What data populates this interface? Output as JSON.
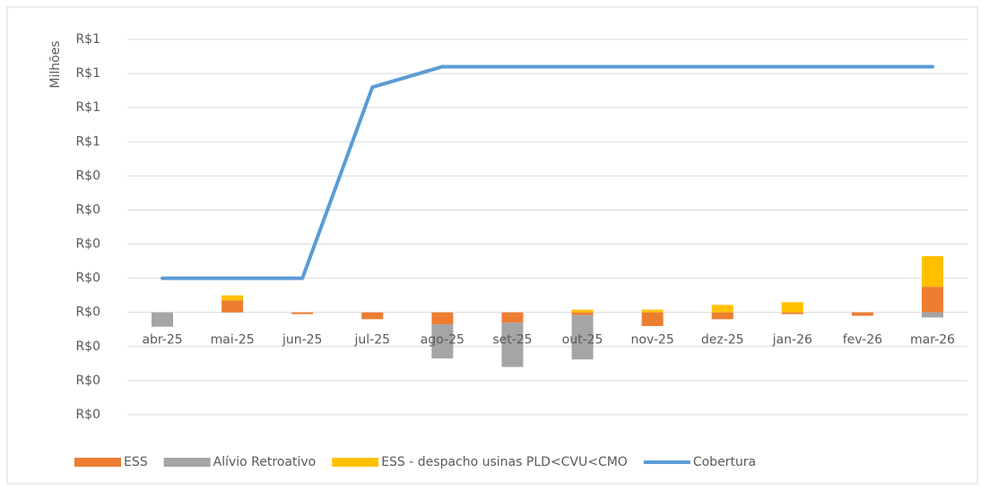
{
  "chart_data": {
    "type": "bar_line",
    "y_label": "Milhões",
    "categories": [
      "abr-25",
      "mai-25",
      "jun-25",
      "jul-25",
      "ago-25",
      "set-25",
      "out-25",
      "nov-25",
      "dez-25",
      "jan-26",
      "fev-26",
      "mar-26"
    ],
    "series": [
      {
        "name": "ESS",
        "type": "bar",
        "color": "#ed7d31",
        "values": [
          0,
          0.035,
          -0.005,
          -0.02,
          -0.035,
          -0.03,
          -0.008,
          -0.04,
          -0.02,
          -0.005,
          -0.01,
          0.075
        ]
      },
      {
        "name": "Alívio Retroativo",
        "type": "bar",
        "color": "#a5a5a5",
        "values": [
          -0.042,
          0,
          0,
          0,
          -0.1,
          -0.13,
          -0.13,
          0,
          0,
          0,
          0,
          -0.015
        ]
      },
      {
        "name": "ESS - despacho usinas PLD<CVU<CMO",
        "type": "bar",
        "color": "#ffc000",
        "values": [
          0,
          0.015,
          0,
          0,
          0,
          0,
          0.008,
          0.008,
          0.022,
          0.03,
          0,
          0.09
        ]
      },
      {
        "name": "Cobertura",
        "type": "line",
        "color": "#5b9bd5",
        "values": [
          0.1,
          0.1,
          0.1,
          0.66,
          0.72,
          0.72,
          0.72,
          0.72,
          0.72,
          0.72,
          0.72,
          0.72
        ]
      }
    ],
    "ylim": [
      -0.3,
      0.8
    ],
    "yticks": [
      {
        "value": -0.3,
        "label": "R$0"
      },
      {
        "value": -0.2,
        "label": "R$0"
      },
      {
        "value": -0.1,
        "label": "R$0"
      },
      {
        "value": 0,
        "label": "R$0"
      },
      {
        "value": 0.1,
        "label": "R$0"
      },
      {
        "value": 0.2,
        "label": "R$0"
      },
      {
        "value": 0.3,
        "label": "R$0"
      },
      {
        "value": 0.4,
        "label": "R$0"
      },
      {
        "value": 0.5,
        "label": "R$1"
      },
      {
        "value": 0.6,
        "label": "R$1"
      },
      {
        "value": 0.7,
        "label": "R$1"
      },
      {
        "value": 0.8,
        "label": "R$1"
      }
    ],
    "grid": true,
    "legend": "bottom"
  }
}
